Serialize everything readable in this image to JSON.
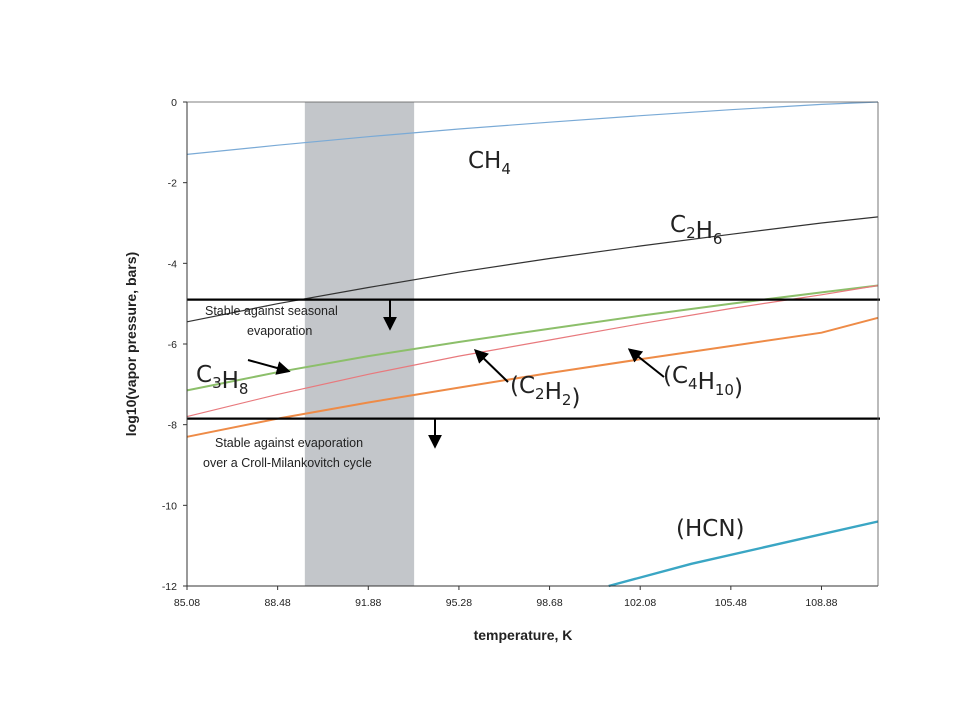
{
  "chart_data": {
    "type": "line",
    "title": "",
    "xlabel": "temperature, K",
    "ylabel": "log10(vapor pressure, bars)",
    "xlim": [
      85.08,
      111.0
    ],
    "ylim": [
      -12,
      0
    ],
    "x_ticks": [
      "85.08",
      "88.48",
      "91.88",
      "95.28",
      "98.68",
      "102.08",
      "105.48",
      "108.88"
    ],
    "y_ticks": [
      "0",
      "-2",
      "-4",
      "-6",
      "-8",
      "-10",
      "-12"
    ],
    "grid": false,
    "legend": "none",
    "shaded_band": {
      "x_range": [
        89.5,
        93.6
      ],
      "color": "#c3c6ca"
    },
    "series": [
      {
        "name": "CH4",
        "label_main": "CH",
        "label_sub": "4",
        "label_tail": "",
        "color": "#7aaad6",
        "points": [
          [
            85.08,
            -1.3
          ],
          [
            88.48,
            -1.07
          ],
          [
            91.88,
            -0.86
          ],
          [
            95.28,
            -0.67
          ],
          [
            98.68,
            -0.5
          ],
          [
            102.08,
            -0.34
          ],
          [
            105.48,
            -0.19
          ],
          [
            108.88,
            -0.06
          ],
          [
            111.0,
            0.0
          ]
        ]
      },
      {
        "name": "C2H6",
        "label_main": "C",
        "label_sub": "2",
        "label_mid": "H",
        "label_sub2": "6",
        "label_tail": "",
        "color": "#333333",
        "points": [
          [
            85.08,
            -5.45
          ],
          [
            88.48,
            -5.0
          ],
          [
            91.88,
            -4.6
          ],
          [
            95.28,
            -4.22
          ],
          [
            98.68,
            -3.88
          ],
          [
            102.08,
            -3.57
          ],
          [
            105.48,
            -3.28
          ],
          [
            108.88,
            -3.0
          ],
          [
            111.0,
            -2.85
          ]
        ]
      },
      {
        "name": "C3H8",
        "label_main": "C",
        "label_sub": "3",
        "label_mid": "H",
        "label_sub2": "8",
        "label_tail": "",
        "color": "#8cbf6a",
        "points": [
          [
            85.08,
            -7.15
          ],
          [
            88.48,
            -6.7
          ],
          [
            91.88,
            -6.3
          ],
          [
            95.28,
            -5.95
          ],
          [
            98.68,
            -5.62
          ],
          [
            102.08,
            -5.3
          ],
          [
            105.48,
            -5.0
          ],
          [
            108.88,
            -4.72
          ],
          [
            111.0,
            -4.55
          ]
        ]
      },
      {
        "name": "(C2H2)",
        "label_main": "(C",
        "label_sub": "2",
        "label_mid": "H",
        "label_sub2": "2",
        "label_tail": ")",
        "color": "#e8797d",
        "points": [
          [
            85.08,
            -7.8
          ],
          [
            88.48,
            -7.25
          ],
          [
            91.88,
            -6.75
          ],
          [
            95.28,
            -6.3
          ],
          [
            98.68,
            -5.9
          ],
          [
            102.08,
            -5.5
          ],
          [
            105.48,
            -5.12
          ],
          [
            108.88,
            -4.78
          ],
          [
            111.0,
            -4.55
          ]
        ]
      },
      {
        "name": "(C4H10)",
        "label_main": "(C",
        "label_sub": "4",
        "label_mid": "H",
        "label_sub2": "10",
        "label_tail": ")",
        "color": "#ee8b47",
        "points": [
          [
            85.08,
            -8.3
          ],
          [
            88.48,
            -7.85
          ],
          [
            91.88,
            -7.45
          ],
          [
            95.28,
            -7.08
          ],
          [
            98.68,
            -6.72
          ],
          [
            102.08,
            -6.38
          ],
          [
            105.48,
            -6.05
          ],
          [
            108.88,
            -5.72
          ],
          [
            111.0,
            -5.35
          ]
        ]
      },
      {
        "name": "(HCN)",
        "label_main": "(HCN)",
        "label_sub": "",
        "label_tail": "",
        "color": "#3aa6c4",
        "points": [
          [
            100.9,
            -12.0
          ],
          [
            104.0,
            -11.45
          ],
          [
            108.0,
            -10.85
          ],
          [
            111.0,
            -10.4
          ]
        ]
      }
    ],
    "thresholds": [
      {
        "y": -4.9,
        "lines": [
          "Stable against seasonal",
          "evaporation"
        ]
      },
      {
        "y": -7.85,
        "lines": [
          "Stable against evaporation",
          "over a Croll-Milankovitch cycle"
        ]
      }
    ]
  }
}
